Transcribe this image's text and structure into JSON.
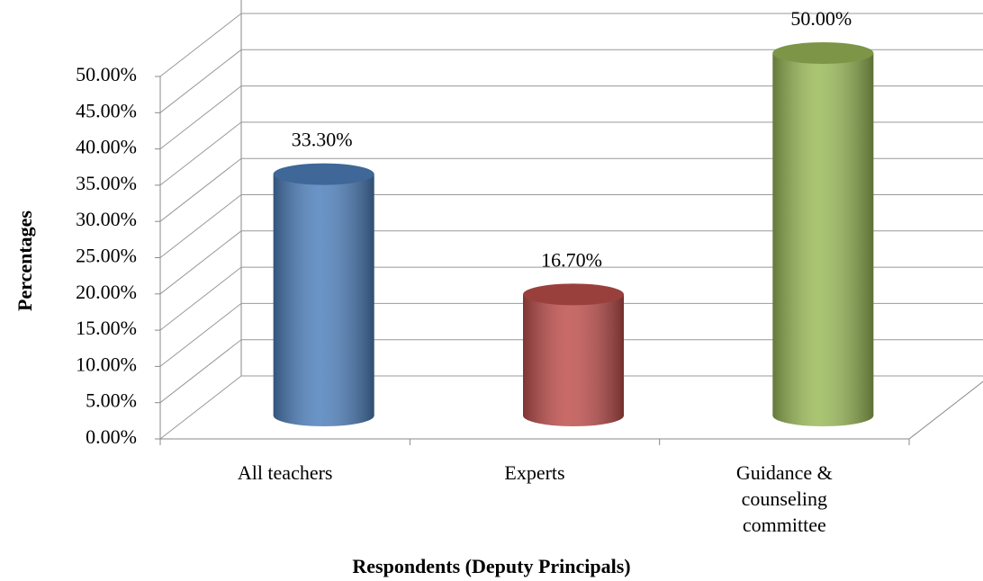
{
  "chart_data": {
    "type": "bar",
    "categories": [
      "All teachers",
      "Experts",
      "Guidance & counseling committee"
    ],
    "values": [
      33.3,
      16.7,
      50
    ],
    "value_labels": [
      "33.30%",
      "16.70%",
      "50.00%"
    ],
    "colors": [
      "#4f81bd",
      "#c0504d",
      "#9bbb59"
    ],
    "ylim": [
      0,
      50
    ],
    "yticks": [
      {
        "value": 0,
        "label": "0.00%"
      },
      {
        "value": 5,
        "label": "5.00%"
      },
      {
        "value": 10,
        "label": "10.00%"
      },
      {
        "value": 15,
        "label": "15.00%"
      },
      {
        "value": 20,
        "label": "20.00%"
      },
      {
        "value": 25,
        "label": "25.00%"
      },
      {
        "value": 30,
        "label": "30.00%"
      },
      {
        "value": 35,
        "label": "35.00%"
      },
      {
        "value": 40,
        "label": "40.00%"
      },
      {
        "value": 45,
        "label": "45.00%"
      },
      {
        "value": 50,
        "label": "50.00%"
      }
    ],
    "x_label": "Respondents (Deputy Principals)",
    "y_label": "Percentages",
    "grid": true
  }
}
